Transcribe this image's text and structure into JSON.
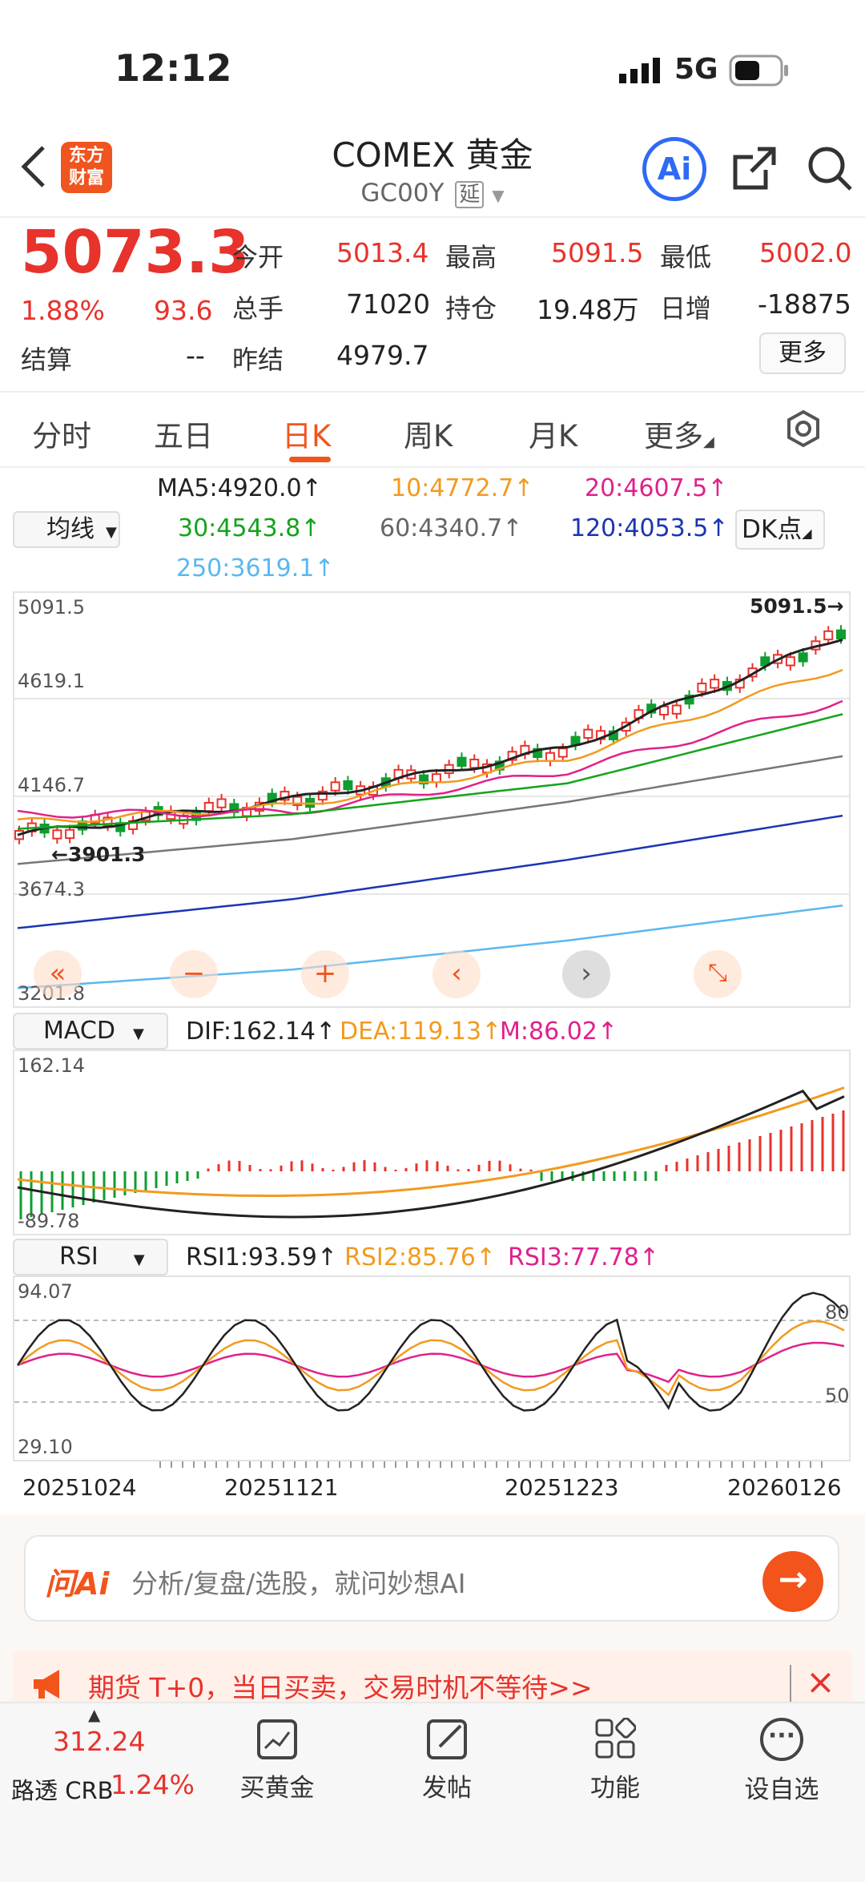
{
  "status": {
    "time": "12:12",
    "network": "5G"
  },
  "header": {
    "logo_line1": "东方",
    "logo_line2": "财富",
    "title": "COMEX 黄金",
    "code": "GC00Y",
    "delay_badge": "延",
    "ai_label": "Ai"
  },
  "quote": {
    "price": "5073.3",
    "change_pct": "1.88%",
    "change": "93.6",
    "settle_label": "结算",
    "settle_value": "--",
    "open_label": "今开",
    "open_value": "5013.4",
    "high_label": "最高",
    "high_value": "5091.5",
    "low_label": "最低",
    "low_value": "5002.0",
    "volume_label": "总手",
    "volume_value": "71020",
    "oi_label": "持仓",
    "oi_value": "19.48万",
    "daily_inc_label": "日增",
    "daily_inc_value": "-18875",
    "prev_settle_label": "昨结",
    "prev_settle_value": "4979.7",
    "more_button": "更多"
  },
  "tabs": [
    "分时",
    "五日",
    "日K",
    "周K",
    "月K",
    "更多"
  ],
  "active_tab": "日K",
  "ma_select": "均线",
  "ma_values": {
    "ma5": "MA5:4920.0↑",
    "ma10": "10:4772.7↑",
    "ma20": "20:4607.5↑",
    "ma30": "30:4543.8↑",
    "ma60": "60:4340.7↑",
    "ma120": "120:4053.5↑",
    "ma250": "250:3619.1↑"
  },
  "dk_button": "DK点",
  "colors": {
    "up": "#e8322c",
    "down": "#0f9d2f",
    "ma5": "#222222",
    "ma10": "#f29a1f",
    "ma20": "#e0218a",
    "ma30": "#14a31b",
    "ma60": "#777777",
    "ma120": "#1a35b5",
    "ma250": "#5ab8f0",
    "accent": "#f2541b"
  },
  "kline": {
    "y_ticks": [
      "5091.5",
      "4619.1",
      "4146.7",
      "3674.3",
      "3201.8"
    ],
    "max_label": "5091.5→",
    "min_label": "←3901.3",
    "x_dates": [
      "20251024",
      "20251121",
      "20251223",
      "20260126"
    ]
  },
  "macd": {
    "select": "MACD",
    "dif": "DIF:162.14↑",
    "dea": "DEA:119.13↑",
    "m": "M:86.02↑",
    "top": "162.14",
    "bottom": "-89.78"
  },
  "rsi": {
    "select": "RSI",
    "rsi1": "RSI1:93.59↑",
    "rsi2": "RSI2:85.76↑",
    "rsi3": "RSI3:77.78↑",
    "top": "94.07",
    "bottom": "29.10",
    "line80": "80",
    "line50": "50"
  },
  "chart_data": {
    "type": "line",
    "title": "COMEX 黄金 日K",
    "x": [
      "20251024",
      "20251121",
      "20251223",
      "20260126"
    ],
    "series": [
      {
        "name": "MA5",
        "values": [
          3960,
          4130,
          4380,
          4920.0
        ]
      },
      {
        "name": "MA10",
        "values": [
          4020,
          4100,
          4330,
          4772.7
        ]
      },
      {
        "name": "MA20",
        "values": [
          4060,
          4070,
          4270,
          4607.5
        ]
      },
      {
        "name": "MA30",
        "values": [
          3990,
          4060,
          4210,
          4543.8
        ]
      },
      {
        "name": "MA60",
        "values": [
          3820,
          3940,
          4120,
          4340.7
        ]
      },
      {
        "name": "MA120",
        "values": [
          3510,
          3650,
          3840,
          4053.5
        ]
      },
      {
        "name": "MA250",
        "values": [
          3220,
          3310,
          3450,
          3619.1
        ]
      }
    ],
    "ylim": [
      3201.8,
      5091.5
    ]
  },
  "ask": {
    "brand": "问Ai",
    "placeholder": "分析/复盘/选股，就问妙想AI"
  },
  "banner": {
    "text": "期货 T+0，当日买卖，交易时机不等待>>",
    "close": "×"
  },
  "bottom_bar": {
    "index_value": "312.24",
    "index_name": "路透 CRB",
    "index_pct": "1.24%",
    "items": [
      "买黄金",
      "发帖",
      "功能",
      "设自选"
    ]
  }
}
